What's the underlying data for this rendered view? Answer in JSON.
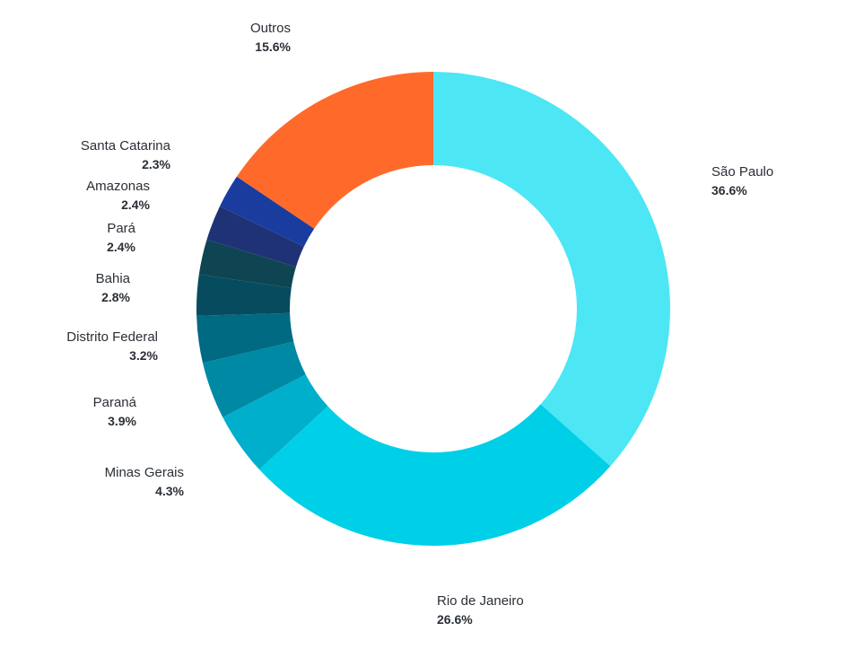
{
  "chart_data": {
    "type": "pie",
    "donut": true,
    "start": "top",
    "direction": "clockwise",
    "slices": [
      {
        "label": "São Paulo",
        "value": 36.6,
        "pct": "36.6%",
        "color": "#4de6f5"
      },
      {
        "label": "Rio de Janeiro",
        "value": 26.6,
        "pct": "26.6%",
        "color": "#00cfe8"
      },
      {
        "label": "Minas Gerais",
        "value": 4.3,
        "pct": "4.3%",
        "color": "#00afcb"
      },
      {
        "label": "Paraná",
        "value": 3.9,
        "pct": "3.9%",
        "color": "#0089a4"
      },
      {
        "label": "Distrito Federal",
        "value": 3.2,
        "pct": "3.2%",
        "color": "#006a82"
      },
      {
        "label": "Bahia",
        "value": 2.8,
        "pct": "2.8%",
        "color": "#064c5e"
      },
      {
        "label": "Pará",
        "value": 2.4,
        "pct": "2.4%",
        "color": "#0f4552"
      },
      {
        "label": "Amazonas",
        "value": 2.4,
        "pct": "2.4%",
        "color": "#1e3275"
      },
      {
        "label": "Santa Catarina",
        "value": 2.3,
        "pct": "2.3%",
        "color": "#1a3c9e"
      },
      {
        "label": "Outros",
        "value": 15.6,
        "pct": "15.6%",
        "color": "#ff6a2b"
      }
    ]
  }
}
